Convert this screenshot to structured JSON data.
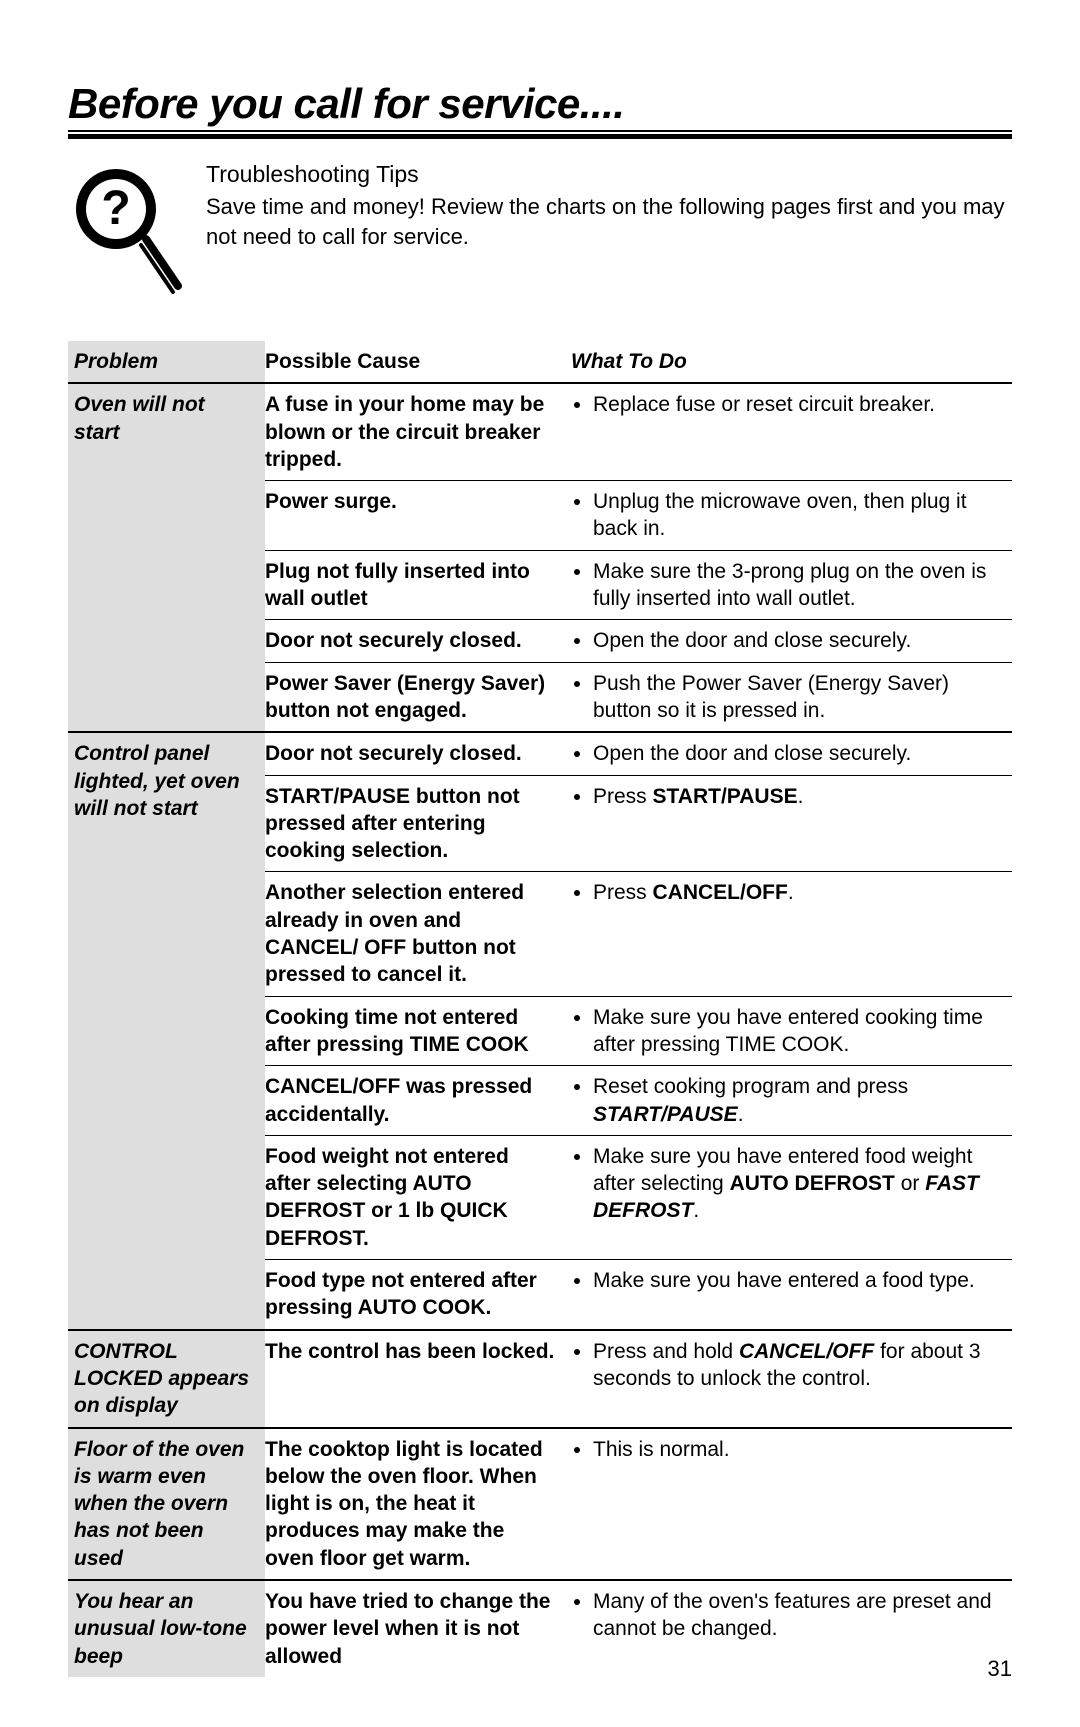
{
  "title": "Before you call for service....",
  "intro": {
    "tips": "Troubleshooting Tips",
    "sub": "Save time and money! Review the charts on the following pages first and you may not need to call for service."
  },
  "headers": {
    "problem": "Problem",
    "cause": "Possible Cause",
    "what": "What To Do"
  },
  "page_number": "31",
  "sections": [
    {
      "problem": "Oven will not start",
      "rows": [
        {
          "cause": "A fuse in your home may be blown or the circuit breaker tripped.",
          "what": "Replace fuse or reset circuit breaker."
        },
        {
          "cause": "Power surge.",
          "what": "Unplug the microwave oven, then plug it back in."
        },
        {
          "cause": "Plug not fully inserted into wall outlet",
          "what": "Make sure the 3-prong plug on the oven is fully inserted into wall outlet."
        },
        {
          "cause": "Door not securely closed.",
          "what": "Open the door and close securely."
        },
        {
          "cause": "Power Saver (Energy Saver) button not engaged.",
          "what": "Push the Power Saver (Energy Saver) button so it is pressed in."
        }
      ]
    },
    {
      "problem": "Control panel lighted, yet oven will not start",
      "rows": [
        {
          "cause": "Door not securely closed.",
          "what": "Open the door and close securely."
        },
        {
          "cause": "START/PAUSE button not pressed after entering cooking selection.",
          "what_html": "Press <b>START/PAUSE</b>."
        },
        {
          "cause": "Another selection entered already in oven and CANCEL/ OFF  button not pressed to cancel it.",
          "what_html": "Press <b>CANCEL/OFF</b>."
        },
        {
          "cause": "Cooking time not entered after pressing TIME COOK",
          "what": "Make sure you have entered cooking time after pressing TIME COOK."
        },
        {
          "cause": "CANCEL/OFF was pressed accidentally.",
          "what_html": "Reset cooking program and press <b><i>START/PAUSE</i></b>."
        },
        {
          "cause": "Food weight not entered after selecting AUTO DEFROST or 1 lb QUICK DEFROST.",
          "what_html": "Make sure you have entered food weight after selecting <b>AUTO DEFROST</b> or <b><i>FAST DEFROST</i></b>."
        },
        {
          "cause": "Food type not entered after pressing AUTO COOK.",
          "what": "Make sure you have entered a food type."
        }
      ]
    },
    {
      "problem": "CONTROL LOCKED appears on display",
      "rows": [
        {
          "cause": "The control has been locked.",
          "what_html": "Press and hold <b><i>CANCEL/OFF</i></b> for about 3 seconds to unlock the control."
        }
      ]
    },
    {
      "problem": "Floor of the oven is warm even when the overn has not been used",
      "rows": [
        {
          "cause": "The cooktop light is located below the oven floor.  When light is on, the heat it produces may make the oven floor get warm.",
          "what": "This is normal."
        }
      ]
    },
    {
      "problem": "You hear an unusual low-tone beep",
      "rows": [
        {
          "cause": "You have tried to change the power level when it is not allowed",
          "what": "Many of the oven's features are preset and cannot be changed."
        }
      ]
    }
  ]
}
